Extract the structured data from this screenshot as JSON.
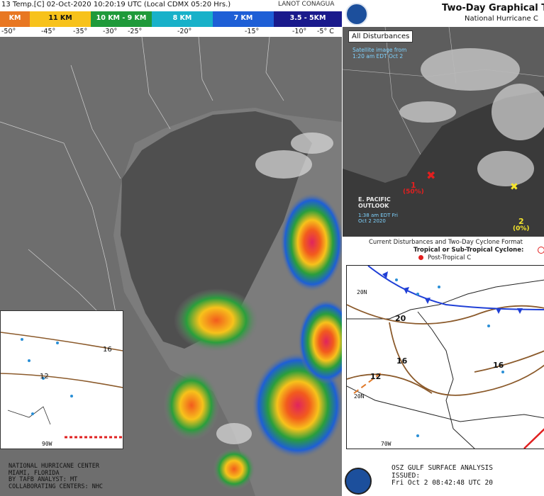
{
  "satellite": {
    "header_title": "13 Temp.[C] 02-Oct-2020 10:20:19 UTC (Local CDMX 05:20 Hrs.)",
    "logos": "LANOT  CONAGUA",
    "bands": [
      {
        "label": "KM",
        "color": "#e87722"
      },
      {
        "label": "11 KM",
        "color": "#f7c21b"
      },
      {
        "label": "10 KM - 9 KM",
        "color": "#1f9a3a"
      },
      {
        "label": "8 KM",
        "color": "#18b1c9"
      },
      {
        "label": "7 KM",
        "color": "#1e5fd6"
      },
      {
        "label": "3.5 - 5KM",
        "color": "#1a1a8c"
      }
    ],
    "ticks": [
      "-50°",
      "-45°",
      "-35°",
      "-30°",
      "-25°",
      "-20°",
      "-15°",
      "-10°",
      "-5° C"
    ]
  },
  "small_surface_chart": {
    "isobar_labels": [
      "16",
      "12"
    ],
    "footer_lines": [
      "NATIONAL HURRICANE CENTER",
      "MIAMI, FLORIDA",
      "BY TAFB ANALYST: MT",
      "COLLABORATING CENTERS: NHC"
    ],
    "lon_label": "90W"
  },
  "outlook": {
    "title": "Two-Day Graphical Tro",
    "subtitle": "National Hurricane C",
    "tab_label": "All Disturbances",
    "image_note": "Satellite image from 1:20 am EDT Oct 2",
    "epac_label": "E. PACIFIC OUTLOOK",
    "epac_time": "1:38 am EDT Fri Oct 2 2020",
    "disturbances": [
      {
        "num": "1",
        "pct": "(50%)",
        "color": "#e21f1f"
      },
      {
        "num": "2",
        "pct": "(0%)",
        "color": "#f5e52c"
      }
    ],
    "legend_line1": "Current Disturbances and Two-Day Cyclone Format",
    "legend_line2": "Tropical or Sub-Tropical Cyclone:",
    "legend_line3": "Post-Tropical C"
  },
  "surface_analysis": {
    "isobar_labels": [
      "20",
      "16",
      "12",
      "16"
    ],
    "lat_labels": [
      "20N",
      "20N"
    ],
    "lon_label": "70W",
    "footer_title": "OSZ GULF SURFACE ANALYSIS",
    "footer_issued": "ISSUED:",
    "footer_time": "Fri Oct 2 08:42:48 UTC 20"
  }
}
